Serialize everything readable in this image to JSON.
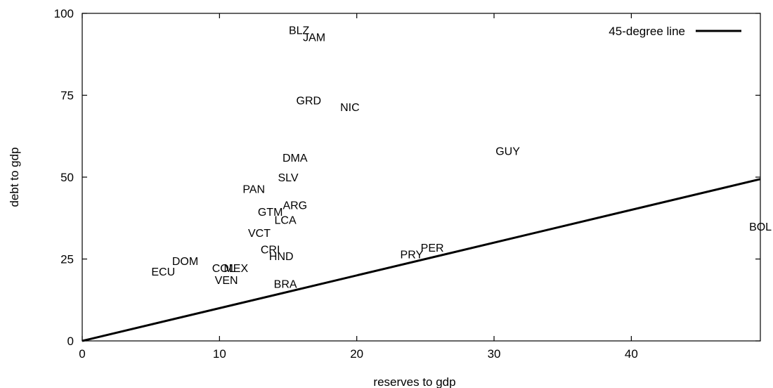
{
  "chart_data": {
    "type": "scatter",
    "title": "",
    "xlabel": "reserves to gdp",
    "ylabel": "debt to gdp",
    "xlim": [
      0,
      49.4
    ],
    "ylim": [
      0,
      100
    ],
    "x_ticks": [
      0,
      10,
      20,
      30,
      40
    ],
    "y_ticks": [
      0,
      25,
      50,
      75,
      100
    ],
    "grid": false,
    "legend": {
      "position": "top-right",
      "entries": [
        "45-degree line"
      ]
    },
    "line": {
      "name": "45-degree line",
      "slope": 1,
      "intercept": 0
    },
    "points": [
      {
        "label": "BLZ",
        "x": 15.8,
        "y": 95.0
      },
      {
        "label": "JAM",
        "x": 16.9,
        "y": 92.8
      },
      {
        "label": "GRD",
        "x": 16.5,
        "y": 73.5
      },
      {
        "label": "NIC",
        "x": 19.5,
        "y": 71.5
      },
      {
        "label": "GUY",
        "x": 31.0,
        "y": 58.0
      },
      {
        "label": "DMA",
        "x": 15.5,
        "y": 56.0
      },
      {
        "label": "SLV",
        "x": 15.0,
        "y": 50.0
      },
      {
        "label": "PAN",
        "x": 12.5,
        "y": 46.5
      },
      {
        "label": "ARG",
        "x": 15.5,
        "y": 41.5
      },
      {
        "label": "GTM",
        "x": 13.7,
        "y": 39.5
      },
      {
        "label": "LCA",
        "x": 14.8,
        "y": 37.0
      },
      {
        "label": "VCT",
        "x": 12.9,
        "y": 33.0
      },
      {
        "label": "BOL",
        "x": 49.2,
        "y": 35.0
      },
      {
        "label": "PER",
        "x": 25.5,
        "y": 28.5
      },
      {
        "label": "PRY",
        "x": 24.0,
        "y": 26.5
      },
      {
        "label": "CRI",
        "x": 13.7,
        "y": 28.0
      },
      {
        "label": "HND",
        "x": 14.5,
        "y": 26.0
      },
      {
        "label": "DOM",
        "x": 7.5,
        "y": 24.5
      },
      {
        "label": "COL",
        "x": 10.3,
        "y": 22.3
      },
      {
        "label": "MEX",
        "x": 11.2,
        "y": 22.3
      },
      {
        "label": "ECU",
        "x": 5.9,
        "y": 21.2
      },
      {
        "label": "VEN",
        "x": 10.5,
        "y": 18.7
      },
      {
        "label": "BRA",
        "x": 14.8,
        "y": 17.5
      }
    ]
  }
}
